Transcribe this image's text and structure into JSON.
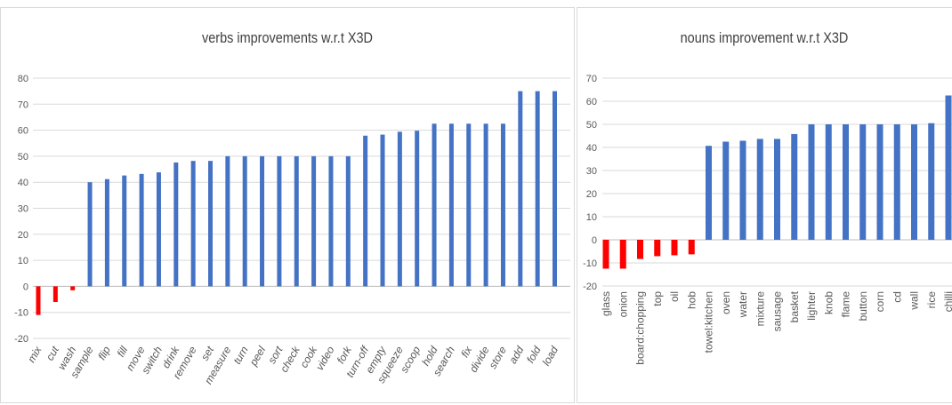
{
  "chart_data": [
    {
      "type": "bar",
      "title": "verbs improvements w.r.t X3D",
      "xlabel": "",
      "ylabel": "",
      "ylim": [
        -20,
        80
      ],
      "yticks": [
        -20,
        -10,
        0,
        10,
        20,
        30,
        40,
        50,
        60,
        70,
        80
      ],
      "grid": true,
      "categories": [
        "mix",
        "cut",
        "wash",
        "sample",
        "flip",
        "fill",
        "move",
        "switch",
        "drink",
        "remove",
        "set",
        "measure",
        "turn",
        "peel",
        "sort",
        "check",
        "cook",
        "video",
        "fork",
        "turn-off",
        "empty",
        "squeeze",
        "scoop",
        "hold",
        "search",
        "fix",
        "divide",
        "store",
        "add",
        "fold",
        "load"
      ],
      "values": [
        -11,
        -6,
        -1.5,
        40,
        41.2,
        42.6,
        43.2,
        43.8,
        47.6,
        48.2,
        48.2,
        50,
        50,
        50,
        50,
        50,
        50,
        50,
        50,
        57.9,
        58.3,
        59.4,
        59.8,
        62.5,
        62.5,
        62.5,
        62.5,
        62.5,
        75,
        75,
        75
      ],
      "colors": {
        "positive": "#4472c4",
        "negative": "#ff0000",
        "grid": "#d9d9d9",
        "axis": "#bfbfbf"
      }
    },
    {
      "type": "bar",
      "title": "nouns improvement w.r.t X3D",
      "xlabel": "",
      "ylabel": "",
      "ylim": [
        -20,
        70
      ],
      "yticks": [
        -20,
        -10,
        0,
        10,
        20,
        30,
        40,
        50,
        60,
        70
      ],
      "grid": true,
      "categories": [
        "glass",
        "onion",
        "board:chopping",
        "top",
        "oil",
        "hob",
        "towel:kitchen",
        "oven",
        "water",
        "mixture",
        "sausage",
        "basket",
        "lighter",
        "knob",
        "flame",
        "button",
        "corn",
        "cd",
        "wall",
        "rice",
        "chilli"
      ],
      "values": [
        -12.5,
        -12.5,
        -8.3,
        -7.1,
        -6.7,
        -6.3,
        40.7,
        42.5,
        42.9,
        43.7,
        43.7,
        45.8,
        50,
        50,
        50,
        50,
        50,
        50,
        50,
        50.5,
        62.5
      ],
      "colors": {
        "positive": "#4472c4",
        "negative": "#ff0000",
        "grid": "#d9d9d9",
        "axis": "#bfbfbf"
      }
    }
  ]
}
